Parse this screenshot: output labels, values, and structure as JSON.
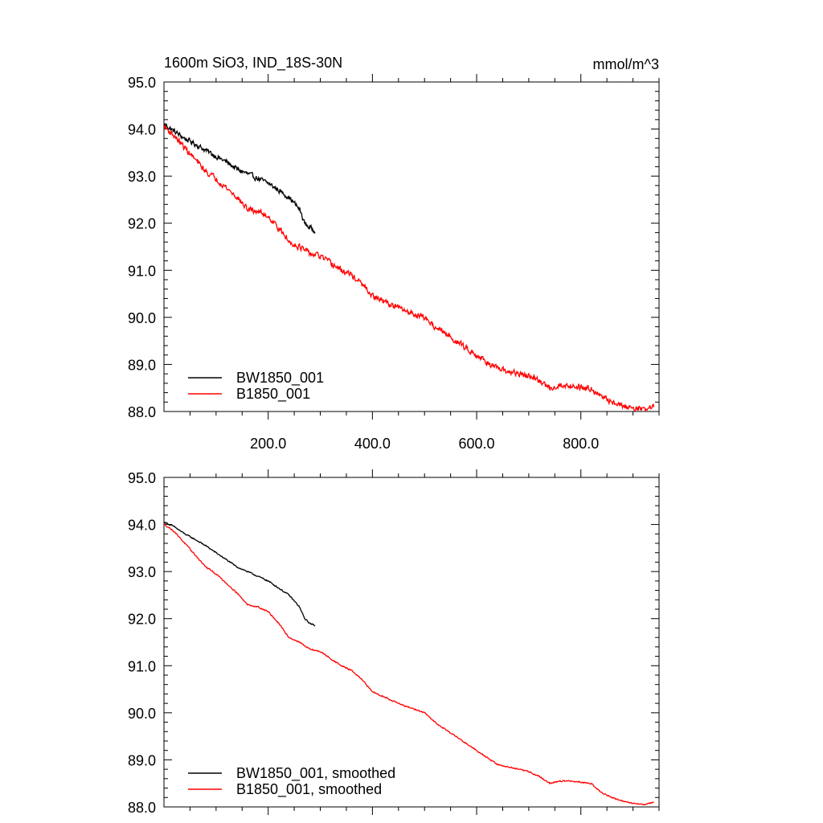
{
  "title_left": "1600m SiO3, IND_18S-30N",
  "title_right": "mmol/m^3",
  "colors": {
    "BW1850_001": "#000000",
    "B1850_001": "#ff0000"
  },
  "chart_data": [
    {
      "type": "line",
      "xlim": [
        0,
        950
      ],
      "ylim": [
        88,
        95
      ],
      "x_ticks": [
        200,
        400,
        600,
        800
      ],
      "x_tick_labels": [
        "200.0",
        "400.0",
        "600.0",
        "800.0"
      ],
      "y_ticks": [
        88,
        89,
        90,
        91,
        92,
        93,
        94,
        95
      ],
      "y_tick_labels": [
        "88.0",
        "89.0",
        "90.0",
        "91.0",
        "92.0",
        "93.0",
        "94.0",
        "95.0"
      ],
      "grid": false,
      "legend": "bottom-left",
      "series": [
        {
          "name": "BW1850_001",
          "color": "#000000",
          "x": [
            1,
            20,
            40,
            60,
            80,
            100,
            120,
            140,
            160,
            180,
            200,
            220,
            240,
            260,
            270,
            280,
            290
          ],
          "y": [
            94.1,
            93.95,
            93.8,
            93.68,
            93.55,
            93.42,
            93.3,
            93.15,
            93.05,
            92.95,
            92.85,
            92.7,
            92.55,
            92.3,
            92.0,
            91.9,
            91.85
          ],
          "noise": 0.08
        },
        {
          "name": "B1850_001",
          "color": "#ff0000",
          "x": [
            1,
            20,
            40,
            60,
            80,
            100,
            120,
            140,
            160,
            180,
            200,
            220,
            240,
            260,
            280,
            300,
            320,
            340,
            360,
            380,
            400,
            420,
            440,
            460,
            480,
            500,
            520,
            540,
            560,
            580,
            600,
            620,
            640,
            660,
            680,
            700,
            720,
            740,
            760,
            780,
            800,
            820,
            840,
            860,
            880,
            900,
            920,
            940
          ],
          "y": [
            94.05,
            93.85,
            93.6,
            93.35,
            93.1,
            92.95,
            92.75,
            92.55,
            92.3,
            92.25,
            92.15,
            91.9,
            91.6,
            91.5,
            91.35,
            91.3,
            91.15,
            91.0,
            90.9,
            90.7,
            90.45,
            90.35,
            90.25,
            90.15,
            90.08,
            90.0,
            89.8,
            89.65,
            89.5,
            89.35,
            89.2,
            89.05,
            88.9,
            88.85,
            88.8,
            88.75,
            88.65,
            88.5,
            88.55,
            88.55,
            88.52,
            88.5,
            88.3,
            88.2,
            88.12,
            88.08,
            88.05,
            88.1
          ],
          "noise": 0.09
        }
      ]
    },
    {
      "type": "line",
      "xlim": [
        0,
        950
      ],
      "ylim": [
        88,
        95
      ],
      "x_ticks": [
        200,
        400,
        600,
        800
      ],
      "x_tick_labels": [],
      "y_ticks": [
        88,
        89,
        90,
        91,
        92,
        93,
        94,
        95
      ],
      "y_tick_labels": [
        "88.0",
        "89.0",
        "90.0",
        "91.0",
        "92.0",
        "93.0",
        "94.0",
        "95.0"
      ],
      "grid": false,
      "legend": "bottom-left",
      "series": [
        {
          "name": "BW1850_001, smoothed",
          "color": "#000000",
          "x": [
            1,
            20,
            40,
            60,
            80,
            100,
            120,
            140,
            160,
            180,
            200,
            220,
            240,
            260,
            270,
            280,
            290
          ],
          "y": [
            94.05,
            93.95,
            93.8,
            93.68,
            93.55,
            93.4,
            93.25,
            93.1,
            93.0,
            92.9,
            92.8,
            92.65,
            92.5,
            92.25,
            92.0,
            91.9,
            91.85
          ],
          "noise": 0.02
        },
        {
          "name": "B1850_001, smoothed",
          "color": "#ff0000",
          "x": [
            1,
            20,
            40,
            60,
            80,
            100,
            120,
            140,
            160,
            180,
            200,
            220,
            240,
            260,
            280,
            300,
            320,
            340,
            360,
            380,
            400,
            420,
            440,
            460,
            480,
            500,
            520,
            540,
            560,
            580,
            600,
            620,
            640,
            660,
            680,
            700,
            720,
            740,
            760,
            780,
            800,
            820,
            840,
            860,
            880,
            900,
            920,
            940
          ],
          "y": [
            94.0,
            93.85,
            93.6,
            93.35,
            93.1,
            92.95,
            92.75,
            92.55,
            92.3,
            92.25,
            92.15,
            91.9,
            91.6,
            91.5,
            91.35,
            91.3,
            91.15,
            91.0,
            90.9,
            90.7,
            90.45,
            90.35,
            90.25,
            90.15,
            90.08,
            90.0,
            89.8,
            89.65,
            89.5,
            89.35,
            89.2,
            89.05,
            88.9,
            88.85,
            88.8,
            88.75,
            88.65,
            88.5,
            88.55,
            88.55,
            88.52,
            88.5,
            88.3,
            88.2,
            88.12,
            88.08,
            88.05,
            88.1
          ],
          "noise": 0.02
        }
      ]
    }
  ]
}
